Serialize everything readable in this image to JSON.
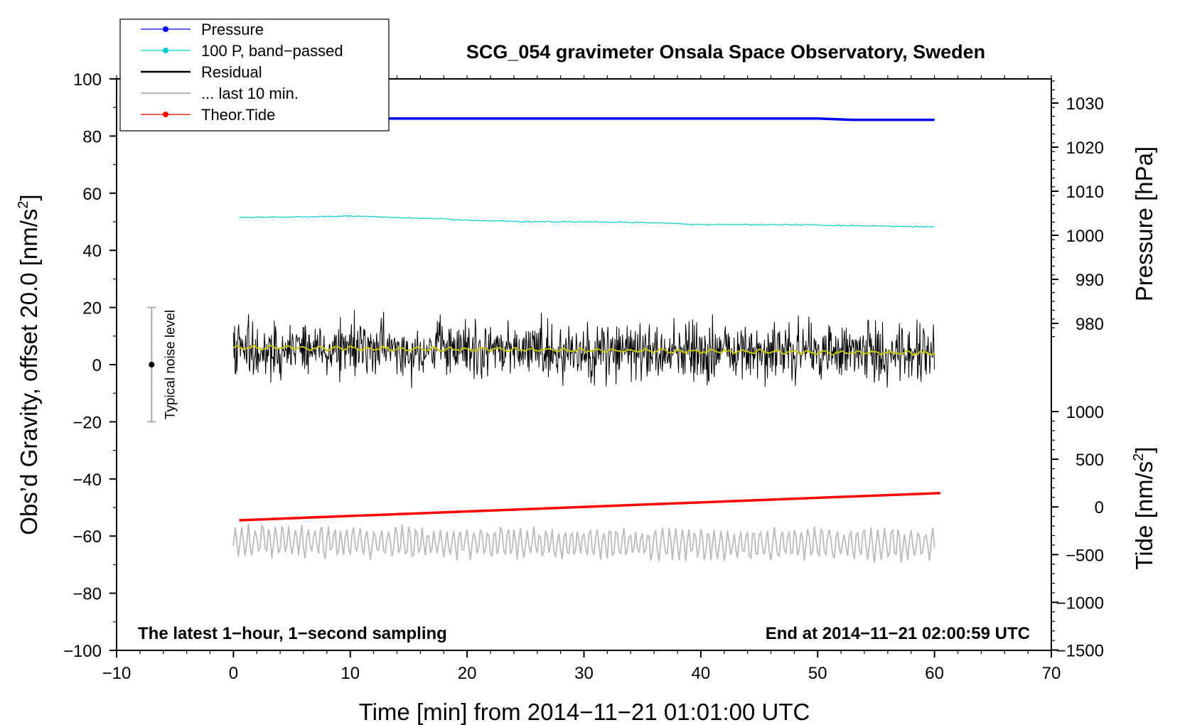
{
  "chart_data": {
    "type": "line",
    "title": "SCG_054 gravimeter Onsala Space Observatory, Sweden",
    "xlabel": "Time [min] from 2014−11−21 01:01:00 UTC",
    "ylabel": "Obs’d Gravity, offset 20.0 [nm/s²]",
    "ylabel_main": "Obs’d Gravity, offset 20.0 [nm/s",
    "ylabel_sup": "2",
    "ylabel_close": "]",
    "xlim": [
      -10,
      70
    ],
    "ylim": [
      -100,
      100
    ],
    "xticks": [
      -10,
      0,
      10,
      20,
      30,
      40,
      50,
      60,
      70
    ],
    "yticks": [
      -100,
      -80,
      -60,
      -40,
      -20,
      0,
      20,
      40,
      60,
      80,
      100
    ],
    "xtick_labels": [
      "−10",
      "0",
      "10",
      "20",
      "30",
      "40",
      "50",
      "60",
      "70"
    ],
    "ytick_labels": [
      "−100",
      "−80",
      "−60",
      "−40",
      "−20",
      "0",
      "20",
      "40",
      "60",
      "80",
      "100"
    ],
    "pressure_axis": {
      "label": "Pressure [hPa]",
      "ticks": [
        980,
        990,
        1000,
        1010,
        1020,
        1030
      ],
      "tick_labels": [
        "980",
        "990",
        "1000",
        "1010",
        "1020",
        "1030"
      ]
    },
    "tide_axis": {
      "label_main": "Tide [nm/s",
      "label_sup": "2",
      "label_close": "]",
      "ticks": [
        -1500,
        -1000,
        -500,
        0,
        500,
        1000
      ],
      "tick_labels": [
        "−1500",
        "−1000",
        "−500",
        "0",
        "500",
        "1000"
      ]
    },
    "series": [
      {
        "name": "Pressure",
        "color": "#0000ff",
        "axis": "pressure",
        "x": [
          0,
          10,
          20,
          30,
          40,
          50,
          53,
          60
        ],
        "values": [
          1026.6,
          1026.5,
          1026.5,
          1026.5,
          1026.5,
          1026.5,
          1026.2,
          1026.2
        ]
      },
      {
        "name": "100 P, band−passed",
        "color": "#00cccc",
        "axis": "gravity",
        "x": [
          0.5,
          5,
          10,
          15,
          20,
          25,
          30,
          35,
          40,
          45,
          50,
          55,
          60
        ],
        "values": [
          51.5,
          51.7,
          52.0,
          51.4,
          50.6,
          50.0,
          50.0,
          49.8,
          49.0,
          49.0,
          48.9,
          48.5,
          48.2
        ]
      },
      {
        "name": "Residual",
        "color": "#000000",
        "axis": "gravity",
        "x": [
          0,
          60
        ],
        "values": [
          6.0,
          4.0
        ],
        "noise_amplitude": 5
      },
      {
        "name": "... last 10 min.",
        "color": "#bbbbbb",
        "axis": "gravity",
        "x": [
          0,
          60
        ],
        "values": [
          -62,
          -63
        ],
        "noise_amplitude": 5
      },
      {
        "name": "Theor.Tide",
        "color": "#ff0000",
        "axis": "tide",
        "x": [
          0.5,
          60.5
        ],
        "values": [
          -140,
          145
        ]
      }
    ],
    "smoothed_residual": {
      "color": "#c8c800",
      "x": [
        0,
        60
      ],
      "values": [
        6.0,
        4.0
      ]
    },
    "noise_bar": {
      "label": "Typical noise level",
      "x": -7,
      "center": 0,
      "low": -20,
      "high": 20
    },
    "annotations": {
      "left": "The latest 1−hour, 1−second sampling",
      "right": "End at 2014−11−21 02:00:59 UTC"
    },
    "legend_position": "top-left"
  }
}
